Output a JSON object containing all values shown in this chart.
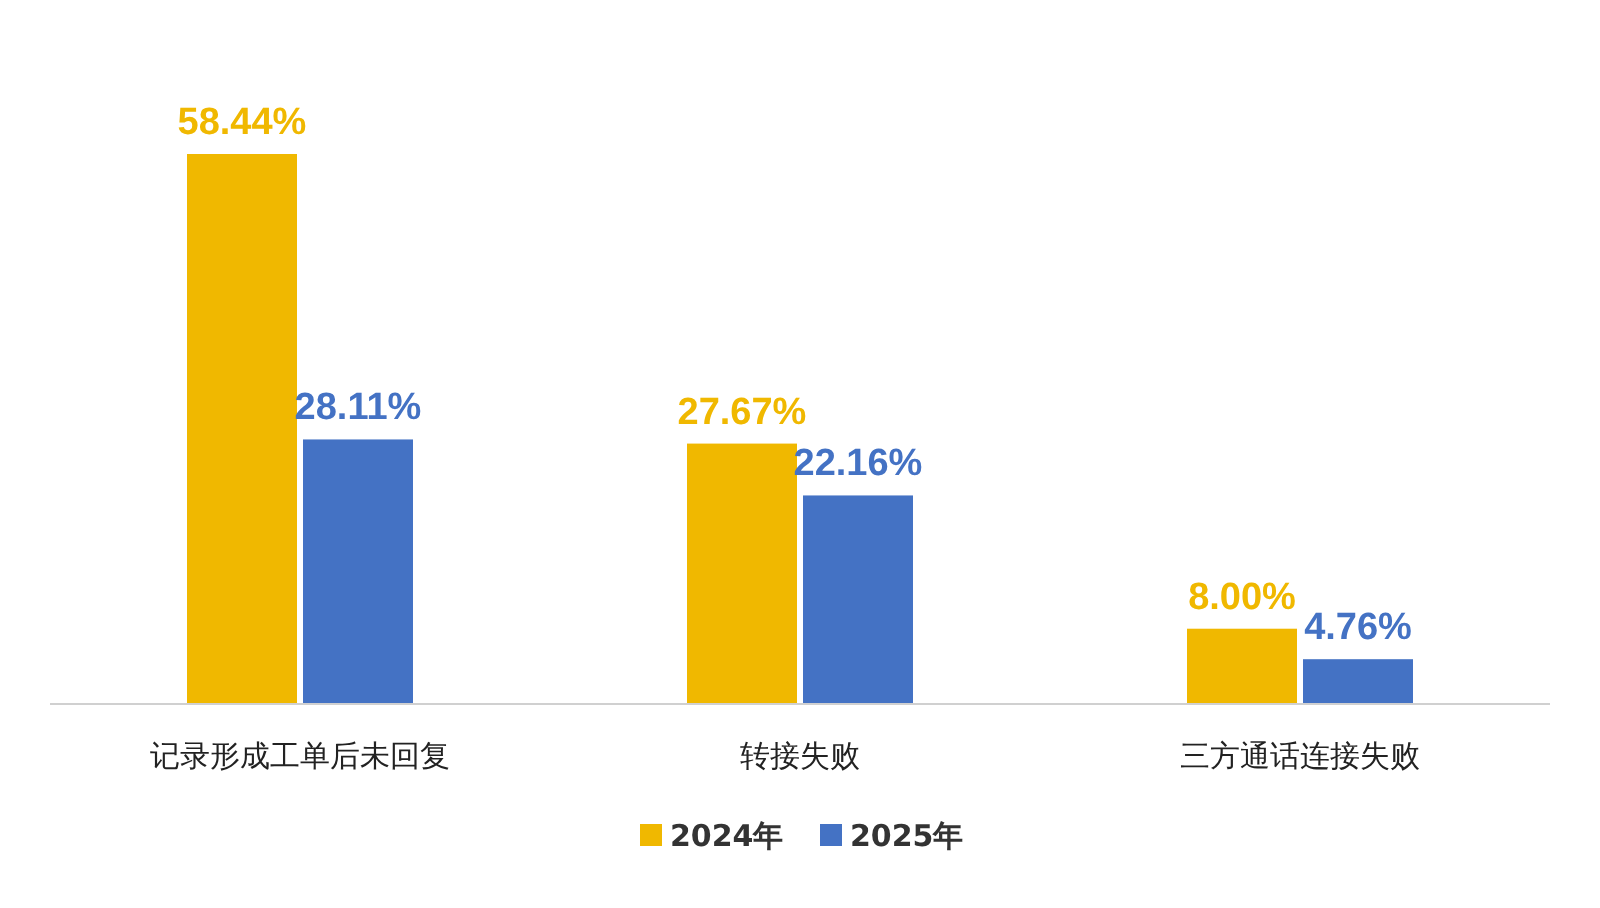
{
  "chart_data": {
    "type": "bar",
    "categories": [
      "记录形成工单后未回复",
      "转接失败",
      "三方通话连接失败"
    ],
    "series": [
      {
        "name": "2024年",
        "color": "#f0b800",
        "values": [
          58.44,
          27.67,
          8.0
        ],
        "value_labels": [
          "58.44%",
          "27.67%",
          "8.00%"
        ]
      },
      {
        "name": "2025年",
        "color": "#4472c4",
        "values": [
          28.11,
          22.16,
          4.76
        ],
        "value_labels": [
          "28.11%",
          "22.16%",
          "4.76%"
        ]
      }
    ],
    "legend": "bottom"
  }
}
